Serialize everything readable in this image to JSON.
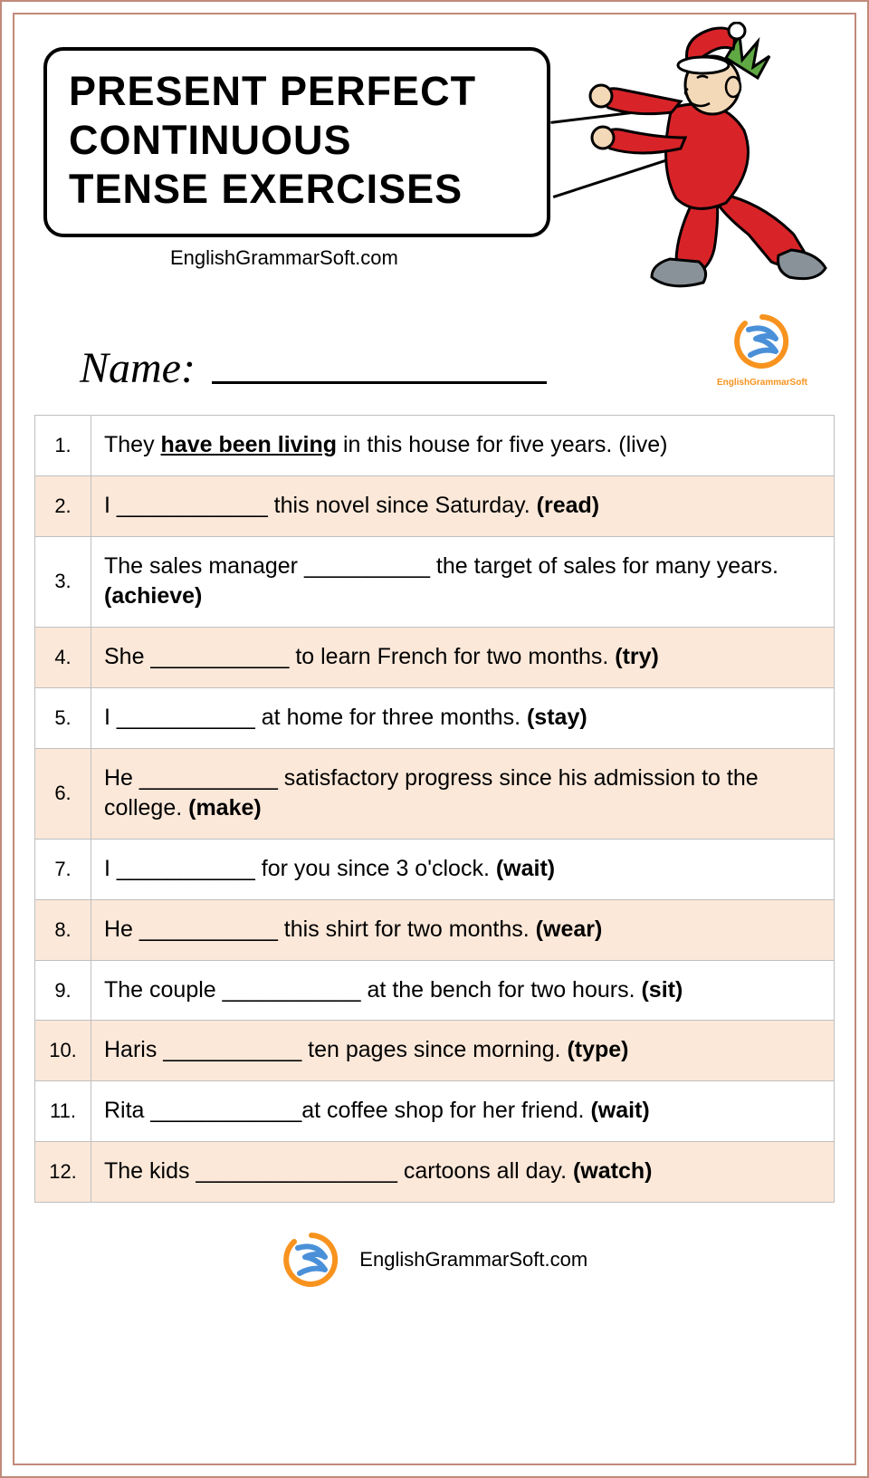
{
  "title": {
    "line1": "PRESENT PERFECT",
    "line2": "CONTINUOUS",
    "line3": "TENSE EXERCISES"
  },
  "website": "EnglishGrammarSoft.com",
  "name_label": "Name:",
  "logo_brand": "EnglishGrammarSoft",
  "colors": {
    "border": "#c08a7a",
    "shaded_row": "#fce8d9",
    "cell_border": "#bfbfbf",
    "logo_orange": "#f7931e",
    "logo_blue": "#4a90d9",
    "character_red": "#d82428",
    "character_hair": "#5fa843",
    "character_skin": "#f4d9b8",
    "character_shoe": "#8a9299"
  },
  "rows": [
    {
      "num": "1.",
      "shaded": false,
      "pre": "They ",
      "answer": "have been living",
      "post": " in this house for five years. (live)"
    },
    {
      "num": "2.",
      "shaded": true,
      "pre": "I ____________ this novel since Saturday. ",
      "word": "(read)"
    },
    {
      "num": "3.",
      "shaded": false,
      "pre": "The sales manager __________ the target of sales for many years. ",
      "word": "(achieve)"
    },
    {
      "num": "4.",
      "shaded": true,
      "pre": "She ___________ to learn French for two months. ",
      "word": "(try)"
    },
    {
      "num": "5.",
      "shaded": false,
      "pre": "I ___________ at home for three months. ",
      "word": "(stay)"
    },
    {
      "num": "6.",
      "shaded": true,
      "pre": "He ___________ satisfactory progress since his admission to the college. ",
      "word": "(make)"
    },
    {
      "num": "7.",
      "shaded": false,
      "pre": "I ___________ for you since 3 o'clock. ",
      "word": "(wait)"
    },
    {
      "num": "8.",
      "shaded": true,
      "pre": "He ___________ this shirt for two months. ",
      "word": "(wear)"
    },
    {
      "num": "9.",
      "shaded": false,
      "pre": "The couple ___________ at the bench for two hours. ",
      "word": "(sit)"
    },
    {
      "num": "10.",
      "shaded": true,
      "pre": "Haris ___________ ten pages since morning. ",
      "word": "(type)"
    },
    {
      "num": "11.",
      "shaded": false,
      "pre": "Rita ____________at coffee shop for her friend. ",
      "word": "(wait)"
    },
    {
      "num": "12.",
      "shaded": true,
      "pre": "The kids ________________ cartoons all day. ",
      "word": "(watch)"
    }
  ]
}
